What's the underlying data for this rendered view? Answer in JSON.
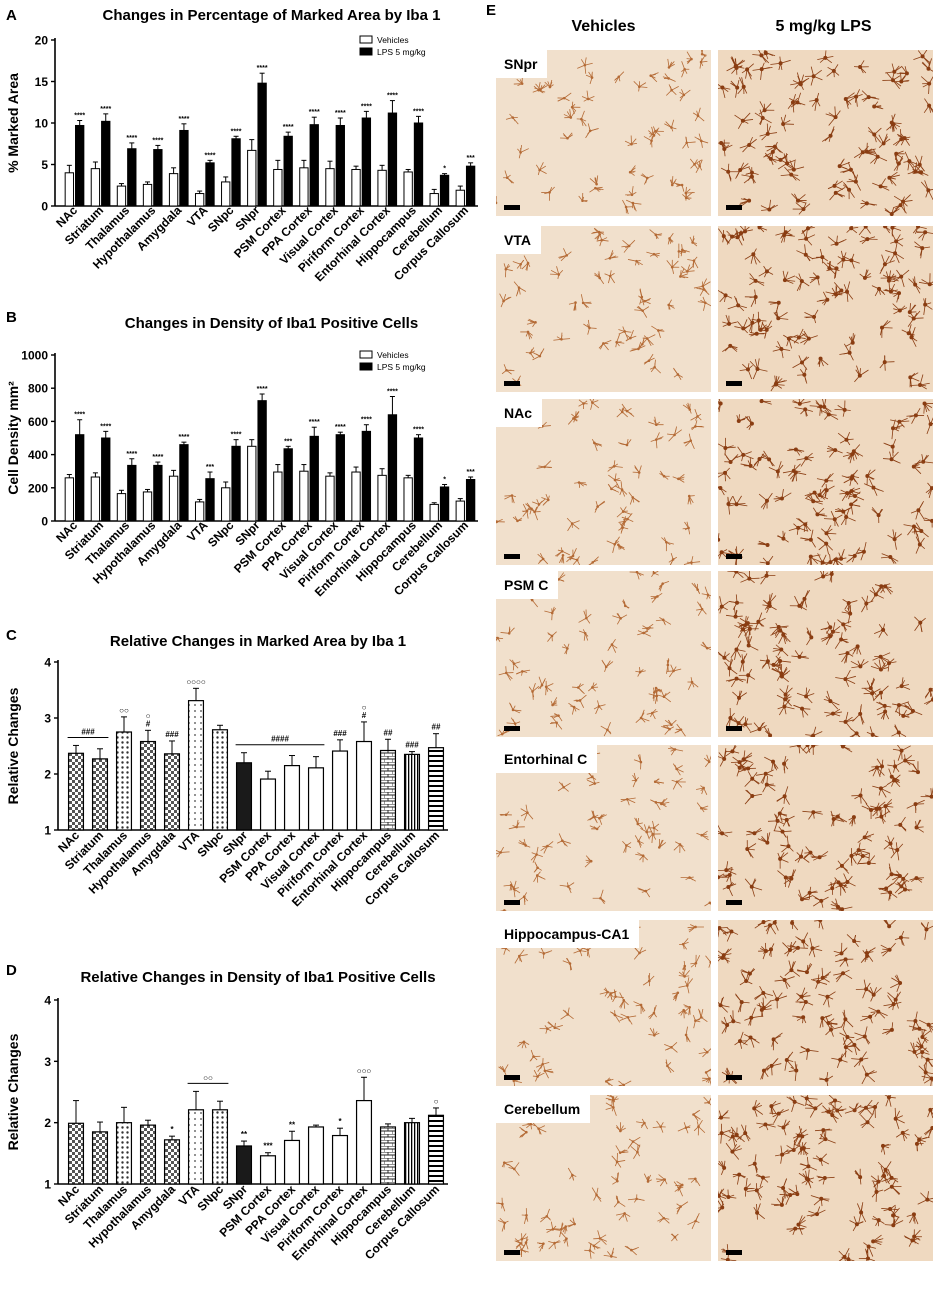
{
  "panels": [
    {
      "letter": "A",
      "chart_data": {
        "type": "bar",
        "title": "Changes in Percentage of Marked Area by Iba 1",
        "ylabel": "% Marked Area",
        "ylim": [
          0,
          20
        ],
        "yticks": [
          0,
          5,
          10,
          15,
          20
        ],
        "legend": "top-right",
        "categories": [
          "NAc",
          "Striatum",
          "Thalamus",
          "Hypothalamus",
          "Amygdala",
          "VTA",
          "SNpc",
          "SNpr",
          "PSM Cortex",
          "PPA Cortex",
          "Visual Cortex",
          "Piriform Cortex",
          "Entorhinal Cortex",
          "Hippocampus",
          "Cerebellum",
          "Corpus Callosum"
        ],
        "series": [
          {
            "name": "Vehicles",
            "values": [
              4.0,
              4.5,
              2.4,
              2.6,
              3.9,
              1.5,
              2.9,
              6.7,
              4.4,
              4.6,
              4.5,
              4.4,
              4.3,
              4.1,
              1.5,
              1.9
            ],
            "errors": [
              0.9,
              0.8,
              0.3,
              0.3,
              0.7,
              0.3,
              0.6,
              1.3,
              1.1,
              0.9,
              0.9,
              0.4,
              0.6,
              0.3,
              0.5,
              0.5
            ]
          },
          {
            "name": "LPS 5 mg/kg",
            "values": [
              9.7,
              10.2,
              6.9,
              6.8,
              9.1,
              5.2,
              8.1,
              14.8,
              8.4,
              9.8,
              9.7,
              10.6,
              11.2,
              10.0,
              3.7,
              4.8
            ],
            "errors": [
              0.6,
              0.9,
              0.7,
              0.5,
              0.8,
              0.3,
              0.3,
              1.2,
              0.5,
              0.9,
              0.9,
              0.8,
              1.5,
              0.8,
              0.2,
              0.4
            ]
          }
        ],
        "annotations": [
          "****",
          "****",
          "****",
          "****",
          "****",
          "****",
          "****",
          "****",
          "****",
          "****",
          "****",
          "****",
          "****",
          "****",
          "*",
          "***"
        ]
      }
    },
    {
      "letter": "B",
      "chart_data": {
        "type": "bar",
        "title": "Changes in Density of Iba1 Positive Cells",
        "ylabel": "Cell Density mm²",
        "ylim": [
          0,
          1000
        ],
        "yticks": [
          0,
          200,
          400,
          600,
          800,
          1000
        ],
        "legend": "top-right",
        "categories": [
          "NAc",
          "Striatum",
          "Thalamus",
          "Hypothalamus",
          "Amygdala",
          "VTA",
          "SNpc",
          "SNpr",
          "PSM Cortex",
          "PPA Cortex",
          "Visual Cortex",
          "Piriform Cortex",
          "Entorhinal Cortex",
          "Hippocampus",
          "Cerebellum",
          "Corpus Callosum"
        ],
        "series": [
          {
            "name": "Vehicles",
            "values": [
              260,
              265,
              165,
              175,
              270,
              115,
              200,
              450,
              295,
              300,
              270,
              295,
              275,
              260,
              100,
              120
            ],
            "errors": [
              20,
              25,
              20,
              15,
              35,
              15,
              35,
              40,
              45,
              40,
              20,
              30,
              40,
              15,
              10,
              15
            ]
          },
          {
            "name": "LPS 5 mg/kg",
            "values": [
              520,
              500,
              335,
              335,
              460,
              255,
              450,
              725,
              435,
              510,
              520,
              540,
              640,
              500,
              205,
              250
            ],
            "errors": [
              90,
              40,
              40,
              20,
              15,
              40,
              40,
              40,
              15,
              55,
              15,
              40,
              110,
              20,
              15,
              15
            ]
          }
        ],
        "annotations": [
          "****",
          "****",
          "****",
          "****",
          "****",
          "***",
          "****",
          "****",
          "***",
          "****",
          "****",
          "****",
          "****",
          "****",
          "*",
          "***"
        ]
      }
    },
    {
      "letter": "C",
      "chart_data": {
        "type": "bar",
        "title": "Relative Changes in Marked Area by Iba 1",
        "ylabel": "Relative Changes",
        "ylim": [
          1,
          4
        ],
        "yticks": [
          1,
          2,
          3,
          4
        ],
        "categories": [
          "NAc",
          "Striatum",
          "Thalamus",
          "Hypothalamus",
          "Amygdala",
          "VTA",
          "SNpc",
          "SNpr",
          "PSM Cortex",
          "PPA Cortex",
          "Visual Cortex",
          "Piriform Cortex",
          "Entorhinal Cortex",
          "Hippocampus",
          "Cerebellum",
          "Corpus Callosum"
        ],
        "values": [
          2.37,
          2.27,
          2.75,
          2.58,
          2.36,
          3.31,
          2.79,
          2.2,
          1.91,
          2.15,
          2.11,
          2.41,
          2.58,
          2.42,
          2.35,
          2.47
        ],
        "errors": [
          0.14,
          0.18,
          0.27,
          0.2,
          0.23,
          0.22,
          0.08,
          0.18,
          0.14,
          0.18,
          0.2,
          0.2,
          0.35,
          0.2,
          0.05,
          0.25
        ],
        "annotations": [
          "",
          "",
          "○○",
          "○\n#",
          "###",
          "○○○○",
          "",
          "",
          "",
          "",
          "",
          "###",
          "○\n#",
          "##",
          "###",
          "##"
        ],
        "brackets": [
          {
            "label": "###",
            "from": "NAc",
            "to": "Striatum"
          },
          {
            "label": "####",
            "from": "SNpr",
            "to": "Visual Cortex"
          }
        ]
      }
    },
    {
      "letter": "D",
      "chart_data": {
        "type": "bar",
        "title": "Relative Changes in Density of Iba1 Positive Cells",
        "ylabel": "Relative Changes",
        "ylim": [
          1,
          4
        ],
        "yticks": [
          1,
          2,
          3,
          4
        ],
        "categories": [
          "NAc",
          "Striatum",
          "Thalamus",
          "Hypothalamus",
          "Amygdala",
          "VTA",
          "SNpc",
          "SNpr",
          "PSM Cortex",
          "PPA Cortex",
          "Visual Cortex",
          "Piriform Cortex",
          "Entorhinal Cortex",
          "Hippocampus",
          "Cerebellum",
          "Corpus Callosum"
        ],
        "values": [
          1.99,
          1.85,
          2.0,
          1.96,
          1.72,
          2.21,
          2.21,
          1.62,
          1.46,
          1.71,
          1.93,
          1.79,
          2.36,
          1.93,
          2.0,
          2.12
        ],
        "errors": [
          0.37,
          0.16,
          0.25,
          0.08,
          0.06,
          0.3,
          0.14,
          0.08,
          0.05,
          0.15,
          0.03,
          0.12,
          0.38,
          0.05,
          0.07,
          0.12
        ],
        "annotations": [
          "",
          "",
          "",
          "",
          "*",
          "",
          "",
          "**",
          "***",
          "**",
          "",
          "*",
          "○○○",
          "",
          "",
          "○"
        ],
        "brackets": [
          {
            "label": "○○",
            "from": "VTA",
            "to": "SNpc"
          }
        ]
      }
    }
  ],
  "micro": {
    "letter": "E",
    "columns": [
      "Vehicles",
      "5 mg/kg LPS"
    ],
    "rows": [
      "SNpr",
      "VTA",
      "NAc",
      "PSM C",
      "Entorhinal C",
      "Hippocampus-CA1",
      "Cerebellum"
    ]
  }
}
